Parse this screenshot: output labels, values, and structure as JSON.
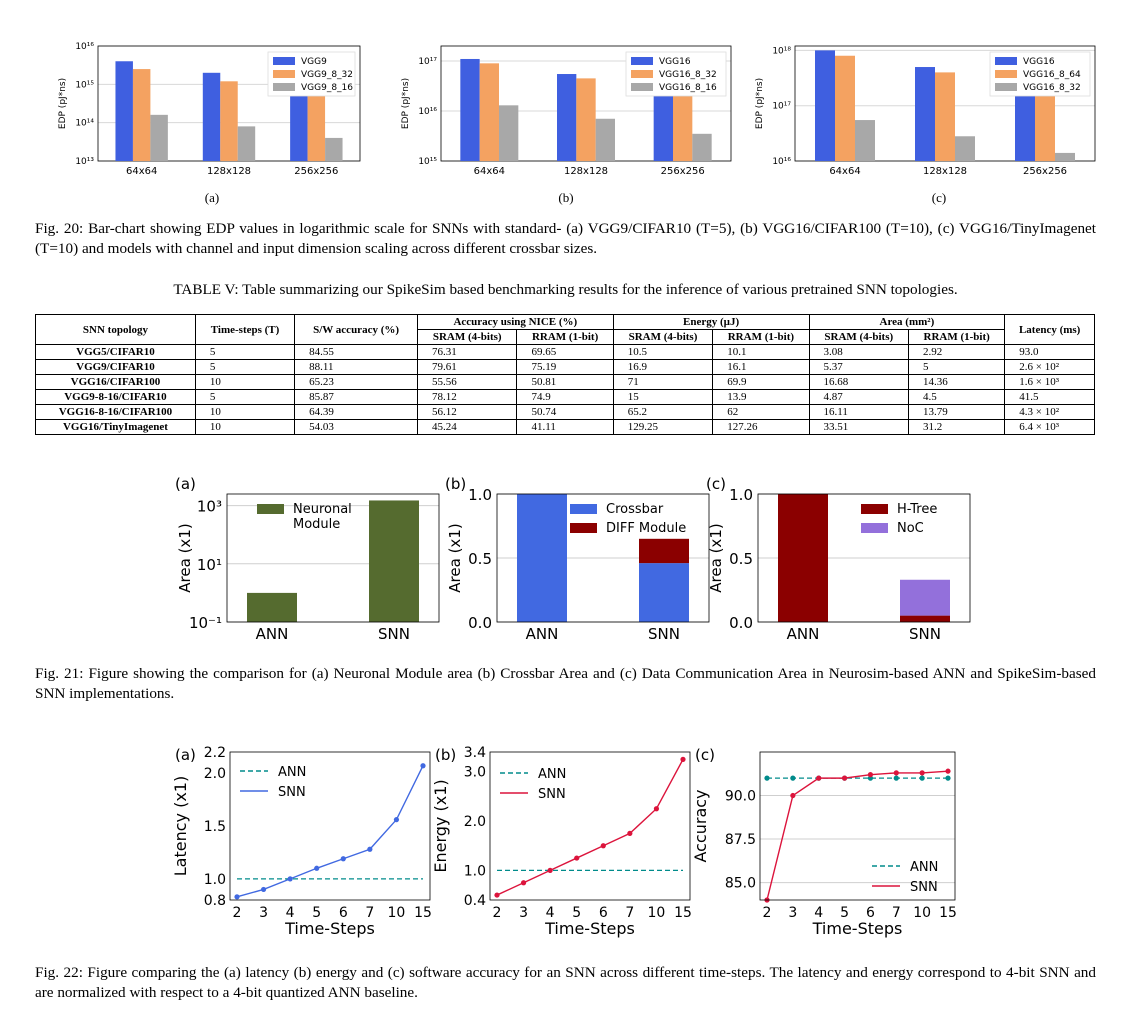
{
  "fig20": {
    "caption": "Fig. 20: Bar-chart showing EDP values in logarithmic scale for SNNs with standard- (a) VGG9/CIFAR10 (T=5), (b) VGG16/CIFAR100 (T=10), (c) VGG16/TinyImagenet (T=10) and models with channel and input dimension scaling across different crossbar sizes.",
    "sublabels": [
      "(a)",
      "(b)",
      "(c)"
    ],
    "colors": [
      "#3f5fe0",
      "#f4a261",
      "#a8a8a8"
    ]
  },
  "table5": {
    "title": "TABLE V: Table summarizing our SpikeSim based benchmarking results for the inference of various pretrained SNN topologies.",
    "headers": {
      "topology": "SNN topology",
      "timesteps": "Time-steps (T)",
      "sw": "S/W accuracy (%)",
      "nice": "Accuracy using NICE (%)",
      "energy": "Energy (µJ)",
      "area": "Area (mm²)",
      "latency": "Latency (ms)",
      "sram": "SRAM (4-bits)",
      "rram": "RRAM (1-bit)"
    },
    "rows": [
      [
        "VGG5/CIFAR10",
        "5",
        "84.55",
        "76.31",
        "69.65",
        "10.5",
        "10.1",
        "3.08",
        "2.92",
        "93.0"
      ],
      [
        "VGG9/CIFAR10",
        "5",
        "88.11",
        "79.61",
        "75.19",
        "16.9",
        "16.1",
        "5.37",
        "5",
        "2.6 × 10²"
      ],
      [
        "VGG16/CIFAR100",
        "10",
        "65.23",
        "55.56",
        "50.81",
        "71",
        "69.9",
        "16.68",
        "14.36",
        "1.6 × 10³"
      ],
      [
        "VGG9-8-16/CIFAR10",
        "5",
        "85.87",
        "78.12",
        "74.9",
        "15",
        "13.9",
        "4.87",
        "4.5",
        "41.5"
      ],
      [
        "VGG16-8-16/CIFAR100",
        "10",
        "64.39",
        "56.12",
        "50.74",
        "65.2",
        "62",
        "16.11",
        "13.79",
        "4.3 × 10²"
      ],
      [
        "VGG16/TinyImagenet",
        "10",
        "54.03",
        "45.24",
        "41.11",
        "129.25",
        "127.26",
        "33.51",
        "31.2",
        "6.4 × 10³"
      ]
    ]
  },
  "fig21": {
    "caption": "Fig. 21: Figure showing the comparison for (a) Neuronal Module area (b) Crossbar Area and (c) Data Communication Area in Neurosim-based ANN and SpikeSim-based SNN implementations.",
    "colors": {
      "neuronal": "#556b2f",
      "crossbar": "#4169e1",
      "diff": "#8b0000",
      "htree": "#8b0000",
      "noc": "#9370db"
    }
  },
  "fig22": {
    "caption": "Fig. 22: Figure comparing the (a) latency (b) energy and (c) software accuracy for an SNN across different time-steps. The latency and energy correspond to 4-bit SNN and are normalized with respect to a 4-bit quantized ANN baseline.",
    "colors": {
      "ann": "#008b8b",
      "snn_latency": "#4169e1",
      "snn": "#dc143c"
    }
  },
  "chart_data": [
    {
      "id": "fig20a",
      "type": "bar",
      "ylabel": "EDP (pJ*ns)",
      "yscale": "log",
      "ylim": [
        10000000000000.0,
        1e+16
      ],
      "yticks": [
        "10¹³",
        "10¹⁴",
        "10¹⁵",
        "10¹⁶"
      ],
      "legend": "top-right",
      "categories": [
        "64x64",
        "128x128",
        "256x256"
      ],
      "series": [
        {
          "name": "VGG9",
          "values": [
            4000000000000000.0,
            2000000000000000.0,
            1000000000000000.0
          ]
        },
        {
          "name": "VGG9_8_32",
          "values": [
            2500000000000000.0,
            1200000000000000.0,
            600000000000000.0
          ]
        },
        {
          "name": "VGG9_8_16",
          "values": [
            160000000000000.0,
            80000000000000.0,
            40000000000000.0
          ]
        }
      ]
    },
    {
      "id": "fig20b",
      "type": "bar",
      "ylabel": "EDP (pJ*ns)",
      "yscale": "log",
      "ylim": [
        1000000000000000.0,
        2e+17
      ],
      "yticks": [
        "10¹⁵",
        "10¹⁶",
        "10¹⁷"
      ],
      "legend": "top-right",
      "categories": [
        "64x64",
        "128x128",
        "256x256"
      ],
      "series": [
        {
          "name": "VGG16",
          "values": [
            1.1e+17,
            5.5e+16,
            2.8e+16
          ]
        },
        {
          "name": "VGG16_8_32",
          "values": [
            9e+16,
            4.5e+16,
            2.2e+16
          ]
        },
        {
          "name": "VGG16_8_16",
          "values": [
            1.3e+16,
            7000000000000000.0,
            3500000000000000.0
          ]
        }
      ]
    },
    {
      "id": "fig20c",
      "type": "bar",
      "ylabel": "EDP (pJ*ns)",
      "yscale": "log",
      "ylim": [
        1e+16,
        1.2e+18
      ],
      "yticks": [
        "10¹⁶",
        "10¹⁷",
        "10¹⁸"
      ],
      "legend": "top-right",
      "categories": [
        "64x64",
        "128x128",
        "256x256"
      ],
      "series": [
        {
          "name": "VGG16",
          "values": [
            1e+18,
            5e+17,
            2.5e+17
          ]
        },
        {
          "name": "VGG16_8_64",
          "values": [
            8e+17,
            4e+17,
            2e+17
          ]
        },
        {
          "name": "VGG16_8_32",
          "values": [
            5.5e+16,
            2.8e+16,
            1.4e+16
          ]
        }
      ]
    },
    {
      "id": "fig21a",
      "type": "bar",
      "panel_label": "(a)",
      "ylabel": "Area (x1)",
      "yscale": "log",
      "ylim": [
        0.1,
        2500
      ],
      "yticks": [
        "10⁻¹",
        "10¹",
        "10³"
      ],
      "legend": "top-left",
      "categories": [
        "ANN",
        "SNN"
      ],
      "series": [
        {
          "name": "Neuronal Module",
          "values": [
            1,
            1500
          ]
        }
      ]
    },
    {
      "id": "fig21b",
      "type": "bar",
      "stacked": true,
      "panel_label": "(b)",
      "ylabel": "Area (x1)",
      "ylim": [
        0,
        1.0
      ],
      "yticks": [
        "0.0",
        "0.5",
        "1.0"
      ],
      "legend": "top-right",
      "categories": [
        "ANN",
        "SNN"
      ],
      "series": [
        {
          "name": "Crossbar",
          "values": [
            1.0,
            0.46
          ]
        },
        {
          "name": "DIFF Module",
          "values": [
            0,
            0.19
          ]
        }
      ]
    },
    {
      "id": "fig21c",
      "type": "bar",
      "stacked": true,
      "panel_label": "(c)",
      "ylabel": "Area (x1)",
      "ylim": [
        0,
        1.0
      ],
      "yticks": [
        "0.0",
        "0.5",
        "1.0"
      ],
      "legend": "top-right",
      "categories": [
        "ANN",
        "SNN"
      ],
      "series": [
        {
          "name": "H-Tree",
          "values": [
            1.0,
            0.05
          ]
        },
        {
          "name": "NoC",
          "values": [
            0,
            0.28
          ]
        }
      ]
    },
    {
      "id": "fig22a",
      "type": "line",
      "panel_label": "(a)",
      "xlabel": "Time-Steps",
      "ylabel": "Latency (x1)",
      "ylim": [
        0.8,
        2.2
      ],
      "yticks": [
        "0.8",
        "1.0",
        "1.5",
        "2.0",
        "2.2"
      ],
      "legend": "top-left",
      "x": [
        "2",
        "3",
        "4",
        "5",
        "6",
        "7",
        "10",
        "15"
      ],
      "series": [
        {
          "name": "ANN",
          "style": "dashed",
          "values": [
            1,
            1,
            1,
            1,
            1,
            1,
            1,
            1
          ]
        },
        {
          "name": "SNN",
          "values": [
            0.83,
            0.9,
            1.0,
            1.1,
            1.19,
            1.28,
            1.56,
            2.07
          ]
        }
      ]
    },
    {
      "id": "fig22b",
      "type": "line",
      "panel_label": "(b)",
      "xlabel": "Time-Steps",
      "ylabel": "Energy (x1)",
      "ylim": [
        0.4,
        3.4
      ],
      "yticks": [
        "0.4",
        "1.0",
        "2.0",
        "3.0",
        "3.4"
      ],
      "legend": "top-left",
      "x": [
        "2",
        "3",
        "4",
        "5",
        "6",
        "7",
        "10",
        "15"
      ],
      "series": [
        {
          "name": "ANN",
          "style": "dashed",
          "values": [
            1,
            1,
            1,
            1,
            1,
            1,
            1,
            1
          ]
        },
        {
          "name": "SNN",
          "values": [
            0.5,
            0.75,
            1.0,
            1.25,
            1.5,
            1.75,
            2.25,
            3.25
          ]
        }
      ]
    },
    {
      "id": "fig22c",
      "type": "line",
      "panel_label": "(c)",
      "xlabel": "Time-Steps",
      "ylabel": "Accuracy",
      "ylim": [
        84,
        92.5
      ],
      "yticks": [
        "85.0",
        "87.5",
        "90.0"
      ],
      "legend": "bottom-right",
      "x": [
        "2",
        "3",
        "4",
        "5",
        "6",
        "7",
        "10",
        "15"
      ],
      "series": [
        {
          "name": "ANN",
          "style": "dashed",
          "values": [
            91,
            91,
            91,
            91,
            91,
            91,
            91,
            91
          ]
        },
        {
          "name": "SNN",
          "values": [
            84,
            90,
            91,
            91,
            91.2,
            91.3,
            91.3,
            91.4
          ]
        }
      ]
    }
  ]
}
